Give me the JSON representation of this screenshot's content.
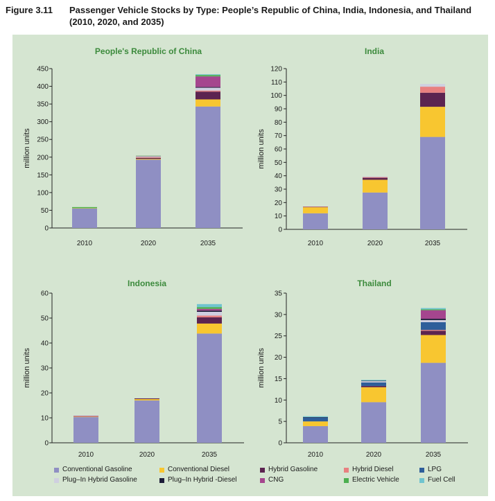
{
  "figure": {
    "number": "Figure 3.11",
    "title": "Passenger Vehicle Stocks by Type: People’s Republic of China, India, Indonesia, and Thailand (2010, 2020, and 2035)"
  },
  "colors": {
    "background": "#d5e5d1",
    "title_green": "#3c8a3c",
    "Conventional Gasoline": "#8f8fc3",
    "Conventional Diesel": "#f8c630",
    "Hybrid Gasoline": "#5c2450",
    "Hybrid Diesel": "#e88080",
    "LPG": "#2e5e9a",
    "Plug–In Hybrid Gasoline": "#cfcfe0",
    "Plug–In Hybrid -Diesel": "#1c1c38",
    "CNG": "#a5468e",
    "Electric Vehicle": "#4caf50",
    "Fuel Cell": "#70c4cf"
  },
  "legend": [
    "Conventional Gasoline",
    "Conventional Diesel",
    "Hybrid Gasoline",
    "Hybrid Diesel",
    "LPG",
    "Plug–In Hybrid Gasoline",
    "Plug–In Hybrid -Diesel",
    "CNG",
    "Electric Vehicle",
    "Fuel Cell"
  ],
  "chart_data": [
    {
      "type": "bar",
      "stacked": true,
      "title": "People's Republic of China",
      "ylabel": "million units",
      "xlabel": "",
      "categories": [
        "2010",
        "2020",
        "2035"
      ],
      "ylim": [
        0,
        450
      ],
      "yticks": [
        0,
        50,
        100,
        150,
        200,
        250,
        300,
        350,
        400,
        450
      ],
      "series": [
        {
          "name": "Conventional Gasoline",
          "values": [
            55,
            193,
            343
          ]
        },
        {
          "name": "Conventional Diesel",
          "values": [
            1,
            2,
            20
          ]
        },
        {
          "name": "Hybrid Gasoline",
          "values": [
            0,
            3,
            22
          ]
        },
        {
          "name": "Hybrid Diesel",
          "values": [
            0,
            2,
            3
          ]
        },
        {
          "name": "LPG",
          "values": [
            0,
            0,
            0
          ]
        },
        {
          "name": "Plug–In Hybrid Gasoline",
          "values": [
            0,
            2,
            8
          ]
        },
        {
          "name": "Plug–In Hybrid -Diesel",
          "values": [
            0,
            0,
            2
          ]
        },
        {
          "name": "CNG",
          "values": [
            0,
            1,
            30
          ]
        },
        {
          "name": "Electric Vehicle",
          "values": [
            3,
            1,
            4
          ]
        },
        {
          "name": "Fuel Cell",
          "values": [
            0,
            0,
            2
          ]
        }
      ]
    },
    {
      "type": "bar",
      "stacked": true,
      "title": "India",
      "ylabel": "million units",
      "xlabel": "",
      "categories": [
        "2010",
        "2020",
        "2035"
      ],
      "ylim": [
        0,
        120
      ],
      "yticks": [
        0,
        10,
        20,
        30,
        40,
        50,
        60,
        70,
        80,
        90,
        100,
        110,
        120
      ],
      "series": [
        {
          "name": "Conventional Gasoline",
          "values": [
            12,
            27.5,
            69
          ]
        },
        {
          "name": "Conventional Diesel",
          "values": [
            4.5,
            9.5,
            22.5
          ]
        },
        {
          "name": "Hybrid Gasoline",
          "values": [
            0.3,
            1.5,
            10.5
          ]
        },
        {
          "name": "Hybrid Diesel",
          "values": [
            0.2,
            0.5,
            4.5
          ]
        },
        {
          "name": "LPG",
          "values": [
            0,
            0,
            0
          ]
        },
        {
          "name": "Plug–In Hybrid Gasoline",
          "values": [
            0,
            0.5,
            2
          ]
        },
        {
          "name": "Plug–In Hybrid -Diesel",
          "values": [
            0,
            0,
            0
          ]
        },
        {
          "name": "CNG",
          "values": [
            0,
            0,
            0
          ]
        },
        {
          "name": "Electric Vehicle",
          "values": [
            0,
            0,
            0
          ]
        },
        {
          "name": "Fuel Cell",
          "values": [
            0,
            0,
            0
          ]
        }
      ]
    },
    {
      "type": "bar",
      "stacked": true,
      "title": "Indonesia",
      "ylabel": "million units",
      "xlabel": "",
      "categories": [
        "2010",
        "2020",
        "2035"
      ],
      "ylim": [
        0,
        60
      ],
      "yticks": [
        0,
        10,
        20,
        30,
        40,
        50,
        60
      ],
      "series": [
        {
          "name": "Conventional Gasoline",
          "values": [
            10.3,
            17,
            43.8
          ]
        },
        {
          "name": "Conventional Diesel",
          "values": [
            0.2,
            0.5,
            4
          ]
        },
        {
          "name": "Hybrid Gasoline",
          "values": [
            0,
            0.3,
            2.5
          ]
        },
        {
          "name": "Hybrid Diesel",
          "values": [
            0,
            0,
            0.7
          ]
        },
        {
          "name": "LPG",
          "values": [
            0,
            0,
            0
          ]
        },
        {
          "name": "Plug–In Hybrid Gasoline",
          "values": [
            0,
            0,
            1.5
          ]
        },
        {
          "name": "Plug–In Hybrid -Diesel",
          "values": [
            0,
            0,
            0.5
          ]
        },
        {
          "name": "CNG",
          "values": [
            0.3,
            0,
            0.7
          ]
        },
        {
          "name": "Electric Vehicle",
          "values": [
            0,
            0,
            0.7
          ]
        },
        {
          "name": "Fuel Cell",
          "values": [
            0,
            0,
            1.2
          ]
        }
      ]
    },
    {
      "type": "bar",
      "stacked": true,
      "title": "Thailand",
      "ylabel": "million units",
      "xlabel": "",
      "categories": [
        "2010",
        "2020",
        "2035"
      ],
      "ylim": [
        0,
        35
      ],
      "yticks": [
        0,
        5,
        10,
        15,
        20,
        25,
        30,
        35
      ],
      "series": [
        {
          "name": "Conventional Gasoline",
          "values": [
            3.9,
            9.5,
            18.7
          ]
        },
        {
          "name": "Conventional Diesel",
          "values": [
            1.1,
            3.5,
            6.5
          ]
        },
        {
          "name": "Hybrid Gasoline",
          "values": [
            0,
            0.3,
            1
          ]
        },
        {
          "name": "Hybrid Diesel",
          "values": [
            0,
            0,
            0.2
          ]
        },
        {
          "name": "LPG",
          "values": [
            0.9,
            0.8,
            1.8
          ]
        },
        {
          "name": "Plug–In Hybrid Gasoline",
          "values": [
            0,
            0.3,
            0.5
          ]
        },
        {
          "name": "Plug–In Hybrid -Diesel",
          "values": [
            0.1,
            0.1,
            0.3
          ]
        },
        {
          "name": "CNG",
          "values": [
            0,
            0,
            2
          ]
        },
        {
          "name": "Electric Vehicle",
          "values": [
            0,
            0,
            0.2
          ]
        },
        {
          "name": "Fuel Cell",
          "values": [
            0.2,
            0.2,
            0.3
          ]
        }
      ]
    }
  ]
}
